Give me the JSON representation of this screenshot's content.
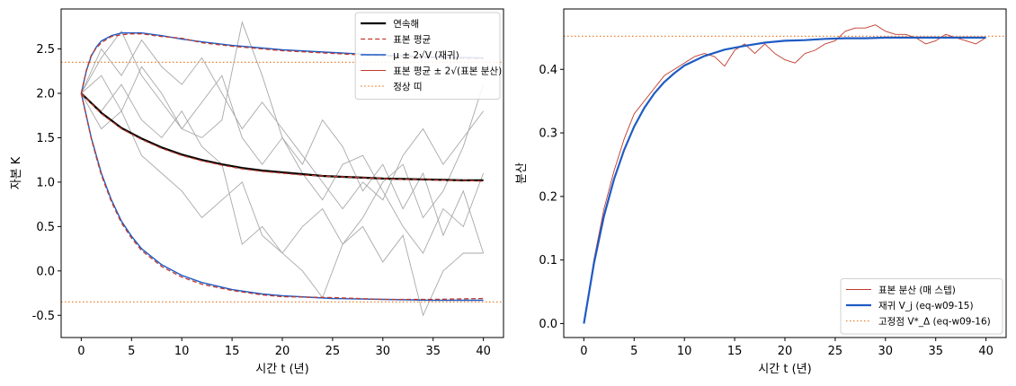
{
  "chart_data": [
    {
      "type": "line",
      "xlabel": "시간 t (년)",
      "ylabel": "자본 K",
      "xlim": [
        -2,
        42
      ],
      "ylim": [
        -0.75,
        2.95
      ],
      "x_ticks": [
        0,
        5,
        10,
        15,
        20,
        25,
        30,
        35,
        40
      ],
      "y_ticks": [
        2.5,
        2.0,
        1.5,
        1.0,
        0.5,
        0.0,
        -0.5
      ],
      "y_tick_labels": [
        "2.5",
        "2.0",
        "1.5",
        "1.0",
        "0.5",
        "0.0",
        "-0.5"
      ],
      "grid": false,
      "legend_position": "upper-right",
      "legend": [
        {
          "label": "연속해",
          "color": "#000000",
          "style": "solid-thick"
        },
        {
          "label": "표본 평균",
          "color": "#c0392b",
          "style": "dashed"
        },
        {
          "label": "μ ± 2√V (재귀)",
          "color": "#1f5bc4",
          "style": "solid"
        },
        {
          "label": "표본 평균 ± 2√(표본 분산)",
          "color": "#c0392b",
          "style": "solid-thin"
        },
        {
          "label": "정상 띠",
          "color": "#ee7f2d",
          "style": "dotted"
        }
      ],
      "series": [
        {
          "name": "연속해",
          "x": [
            0,
            2,
            4,
            6,
            8,
            10,
            12,
            14,
            16,
            18,
            20,
            22,
            24,
            26,
            28,
            30,
            32,
            34,
            36,
            38,
            40
          ],
          "y": [
            2.0,
            1.78,
            1.61,
            1.49,
            1.39,
            1.31,
            1.25,
            1.2,
            1.16,
            1.13,
            1.11,
            1.09,
            1.07,
            1.06,
            1.05,
            1.04,
            1.035,
            1.03,
            1.025,
            1.02,
            1.02
          ]
        },
        {
          "name": "표본 평균",
          "x": [
            0,
            2,
            4,
            6,
            8,
            10,
            12,
            14,
            16,
            18,
            20,
            22,
            24,
            26,
            28,
            30,
            32,
            34,
            36,
            38,
            40
          ],
          "y": [
            2.0,
            1.77,
            1.6,
            1.48,
            1.38,
            1.3,
            1.24,
            1.19,
            1.15,
            1.12,
            1.1,
            1.08,
            1.07,
            1.06,
            1.05,
            1.04,
            1.03,
            1.03,
            1.02,
            1.02,
            1.01
          ]
        },
        {
          "name": "μ + 2√V (재귀)",
          "x": [
            0,
            0.5,
            1,
            1.5,
            2,
            3,
            4,
            5,
            6,
            8,
            10,
            12,
            15,
            18,
            20,
            25,
            30,
            35,
            40
          ],
          "y": [
            2.0,
            2.25,
            2.42,
            2.52,
            2.59,
            2.65,
            2.68,
            2.68,
            2.68,
            2.65,
            2.61,
            2.58,
            2.54,
            2.51,
            2.49,
            2.46,
            2.43,
            2.41,
            2.4
          ]
        },
        {
          "name": "μ − 2√V (재귀)",
          "x": [
            0,
            0.5,
            1,
            1.5,
            2,
            3,
            4,
            5,
            6,
            8,
            10,
            12,
            15,
            18,
            20,
            25,
            30,
            35,
            40
          ],
          "y": [
            2.0,
            1.75,
            1.5,
            1.3,
            1.1,
            0.8,
            0.56,
            0.39,
            0.25,
            0.07,
            -0.05,
            -0.13,
            -0.21,
            -0.26,
            -0.28,
            -0.31,
            -0.32,
            -0.33,
            -0.33
          ]
        },
        {
          "name": "표본 평균 + 2√(표본 분산)",
          "x": [
            0,
            0.5,
            1,
            1.5,
            2,
            3,
            4,
            5,
            6,
            8,
            10,
            12,
            15,
            18,
            20,
            25,
            30,
            35,
            40
          ],
          "y": [
            2.0,
            2.26,
            2.43,
            2.51,
            2.57,
            2.64,
            2.66,
            2.67,
            2.67,
            2.64,
            2.62,
            2.57,
            2.53,
            2.5,
            2.48,
            2.45,
            2.42,
            2.4,
            2.39
          ]
        },
        {
          "name": "표본 평균 − 2√(표본 분산)",
          "x": [
            0,
            0.5,
            1,
            1.5,
            2,
            3,
            4,
            5,
            6,
            8,
            10,
            12,
            15,
            18,
            20,
            25,
            30,
            35,
            40
          ],
          "y": [
            2.0,
            1.74,
            1.49,
            1.28,
            1.08,
            0.78,
            0.54,
            0.37,
            0.23,
            0.05,
            -0.07,
            -0.15,
            -0.22,
            -0.27,
            -0.29,
            -0.3,
            -0.32,
            -0.32,
            -0.31
          ]
        },
        {
          "name": "정상 띠 상한",
          "x": [
            -2,
            42
          ],
          "y": [
            2.35,
            2.35
          ]
        },
        {
          "name": "정상 띠 하한",
          "x": [
            -2,
            42
          ],
          "y": [
            -0.35,
            -0.35
          ]
        }
      ],
      "sample_paths": [
        {
          "x": [
            0,
            2,
            4,
            6,
            8,
            10,
            12,
            14,
            16,
            18,
            20,
            22,
            24,
            26,
            28,
            30,
            32,
            34,
            36,
            38,
            40
          ],
          "y": [
            2.0,
            2.4,
            2.7,
            2.2,
            1.9,
            1.6,
            1.5,
            1.7,
            2.8,
            2.2,
            1.5,
            1.2,
            1.7,
            1.4,
            0.9,
            1.2,
            0.7,
            1.1,
            0.4,
            0.9,
            0.2
          ]
        },
        {
          "x": [
            0,
            2,
            4,
            6,
            8,
            10,
            12,
            14,
            16,
            18,
            20,
            22,
            24,
            26,
            28,
            30,
            32,
            34,
            36,
            38,
            40
          ],
          "y": [
            2.0,
            1.6,
            1.8,
            1.3,
            1.1,
            0.9,
            0.6,
            0.8,
            1.0,
            0.4,
            0.2,
            0.5,
            0.7,
            0.3,
            0.6,
            1.0,
            1.2,
            0.6,
            0.9,
            1.4,
            2.1
          ]
        },
        {
          "x": [
            0,
            2,
            4,
            6,
            8,
            10,
            12,
            14,
            16,
            18,
            20,
            22,
            24,
            26,
            28,
            30,
            32,
            34,
            36,
            38,
            40
          ],
          "y": [
            2.0,
            2.2,
            1.8,
            2.3,
            2.0,
            1.6,
            1.9,
            2.2,
            1.5,
            1.2,
            1.5,
            1.1,
            0.8,
            1.2,
            1.3,
            0.9,
            0.5,
            0.2,
            0.7,
            0.5,
            1.1
          ]
        },
        {
          "x": [
            0,
            2,
            4,
            6,
            8,
            10,
            12,
            14,
            16,
            18,
            20,
            22,
            24,
            26,
            28,
            30,
            32,
            34,
            36,
            38,
            40
          ],
          "y": [
            2.0,
            1.8,
            2.1,
            1.7,
            1.5,
            1.8,
            1.4,
            1.2,
            0.3,
            0.5,
            0.2,
            0.0,
            -0.3,
            0.3,
            0.5,
            0.1,
            0.4,
            -0.5,
            0.0,
            0.2,
            0.2
          ]
        },
        {
          "x": [
            0,
            2,
            4,
            6,
            8,
            10,
            12,
            14,
            16,
            18,
            20,
            22,
            24,
            26,
            28,
            30,
            32,
            34,
            36,
            38,
            40
          ],
          "y": [
            2.0,
            2.5,
            2.2,
            2.6,
            2.3,
            2.1,
            2.4,
            2.0,
            1.6,
            1.9,
            1.6,
            1.3,
            1.0,
            0.7,
            1.0,
            0.8,
            1.3,
            1.6,
            1.2,
            1.5,
            1.8
          ]
        }
      ]
    },
    {
      "type": "line",
      "xlabel": "시간 t (년)",
      "ylabel": "분산",
      "xlim": [
        -2,
        42
      ],
      "ylim": [
        -0.022,
        0.495
      ],
      "x_ticks": [
        0,
        5,
        10,
        15,
        20,
        25,
        30,
        35,
        40
      ],
      "y_ticks": [
        0.0,
        0.1,
        0.2,
        0.3,
        0.4
      ],
      "y_tick_labels": [
        "0.0",
        "0.1",
        "0.2",
        "0.3",
        "0.4"
      ],
      "grid": false,
      "legend_position": "lower-right",
      "legend": [
        {
          "label": "표본 분산 (매 스텝)",
          "color": "#c0392b",
          "style": "solid-thin"
        },
        {
          "label": "재귀 V_j (eq-w09-15)",
          "color": "#1f5bc4",
          "style": "solid-thick"
        },
        {
          "label": "고정점 V*_Δ (eq-w09-16)",
          "color": "#ee7f2d",
          "style": "dotted"
        }
      ],
      "series": [
        {
          "name": "표본 분산 (매 스텝)",
          "x": [
            0,
            1,
            2,
            3,
            4,
            5,
            6,
            7,
            8,
            9,
            10,
            11,
            12,
            13,
            14,
            15,
            16,
            17,
            18,
            19,
            20,
            21,
            22,
            23,
            24,
            25,
            26,
            27,
            28,
            29,
            30,
            31,
            32,
            33,
            34,
            35,
            36,
            37,
            38,
            39,
            40
          ],
          "y": [
            0.0,
            0.1,
            0.18,
            0.24,
            0.29,
            0.33,
            0.35,
            0.37,
            0.39,
            0.4,
            0.41,
            0.42,
            0.425,
            0.42,
            0.405,
            0.43,
            0.44,
            0.425,
            0.44,
            0.425,
            0.415,
            0.41,
            0.425,
            0.43,
            0.44,
            0.445,
            0.46,
            0.465,
            0.465,
            0.47,
            0.46,
            0.455,
            0.455,
            0.45,
            0.44,
            0.445,
            0.455,
            0.45,
            0.445,
            0.44,
            0.45
          ]
        },
        {
          "name": "재귀 V_j (eq-w09-15)",
          "x": [
            0,
            1,
            2,
            3,
            4,
            5,
            6,
            7,
            8,
            9,
            10,
            12,
            14,
            16,
            18,
            20,
            22,
            24,
            26,
            28,
            30,
            32,
            34,
            36,
            38,
            40
          ],
          "y": [
            0.0,
            0.094,
            0.169,
            0.227,
            0.273,
            0.31,
            0.339,
            0.362,
            0.38,
            0.394,
            0.406,
            0.421,
            0.431,
            0.437,
            0.442,
            0.445,
            0.446,
            0.448,
            0.449,
            0.449,
            0.45,
            0.45,
            0.45,
            0.45,
            0.45,
            0.45
          ]
        },
        {
          "name": "고정점 V*_Δ (eq-w09-16)",
          "x": [
            -2,
            42
          ],
          "y": [
            0.452,
            0.452
          ]
        }
      ]
    }
  ]
}
